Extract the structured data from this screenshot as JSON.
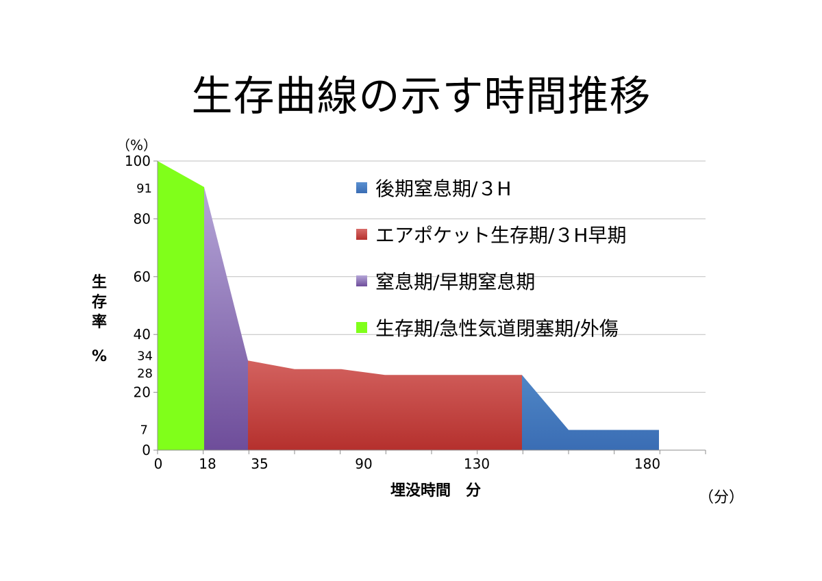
{
  "chart_data": {
    "type": "area",
    "title": "生存曲線の示す時間推移",
    "ylabel": "生存率",
    "ylabel_unit": "%",
    "y_unit_top": "（%）",
    "xlabel": "埋没時間　分",
    "x_unit": "（分）",
    "xlim": [
      0,
      200
    ],
    "ylim": [
      0,
      100
    ],
    "y_ticks": [
      {
        "value": 0,
        "label": "0"
      },
      {
        "value": 20,
        "label": "20"
      },
      {
        "value": 40,
        "label": "40"
      },
      {
        "value": 60,
        "label": "60"
      },
      {
        "value": 80,
        "label": "80"
      },
      {
        "value": 100,
        "label": "100"
      }
    ],
    "y_special_labels": [
      {
        "value": 91,
        "label": "91"
      },
      {
        "value": 34,
        "label": "34"
      },
      {
        "value": 28,
        "label": "28"
      },
      {
        "value": 7,
        "label": "7"
      }
    ],
    "x_ticks": [
      {
        "value": 0,
        "label": "0"
      },
      {
        "value": 18,
        "label": "18"
      },
      {
        "value": 35,
        "label": "35"
      },
      {
        "value": 90,
        "label": "90"
      },
      {
        "value": 130,
        "label": "130"
      },
      {
        "value": 180,
        "label": "180"
      }
    ],
    "grid": true,
    "legend_position": "top-right",
    "series": [
      {
        "name": "後期窒息期/３H",
        "color": "#4a7ec2",
        "points": [
          [
            133,
            26
          ],
          [
            150,
            7
          ],
          [
            183,
            7
          ],
          [
            183,
            0
          ],
          [
            133,
            0
          ]
        ]
      },
      {
        "name": "エアポケット生存期/３H早期",
        "color": "#c0504d",
        "points": [
          [
            33,
            31
          ],
          [
            50,
            28
          ],
          [
            67,
            28
          ],
          [
            83,
            26
          ],
          [
            133,
            26
          ],
          [
            133,
            0
          ],
          [
            33,
            0
          ]
        ]
      },
      {
        "name": "窒息期/早期窒息期",
        "color": "#8064a2",
        "points": [
          [
            17,
            91
          ],
          [
            33,
            31
          ],
          [
            33,
            0
          ],
          [
            17,
            0
          ]
        ]
      },
      {
        "name": "生存期/急性気道閉塞期/外傷",
        "color": "#80ff1a",
        "points": [
          [
            0,
            100
          ],
          [
            17,
            91
          ],
          [
            17,
            0
          ],
          [
            0,
            0
          ]
        ]
      }
    ]
  }
}
